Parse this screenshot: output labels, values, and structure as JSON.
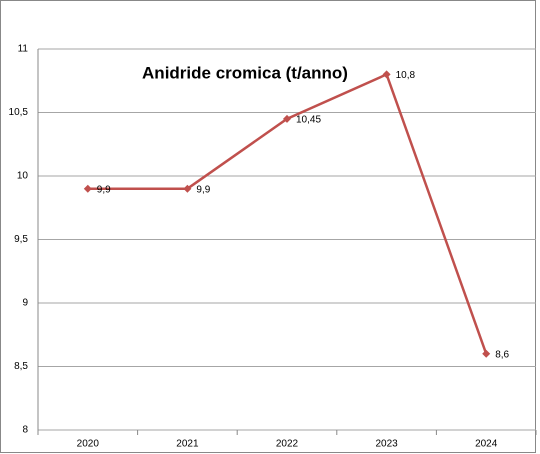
{
  "chart_data": {
    "type": "line",
    "title": "Anidride cromica (t/anno)",
    "categories": [
      "2020",
      "2021",
      "2022",
      "2023",
      "2024"
    ],
    "series": [
      {
        "name": "Anidride cromica",
        "color": "#c0504d",
        "values": [
          9.9,
          9.9,
          10.45,
          10.8,
          8.6
        ],
        "value_labels": [
          "9,9",
          "9,9",
          "10,45",
          "10,8",
          "8,6"
        ]
      }
    ],
    "ylim": [
      8,
      11
    ],
    "yticks": [
      8,
      {
        "value": 8.5,
        "label": "8,5"
      },
      9,
      {
        "value": 9.5,
        "label": "9,5"
      },
      10,
      {
        "value": 10.5,
        "label": "10,5"
      },
      11
    ],
    "grid": true
  }
}
